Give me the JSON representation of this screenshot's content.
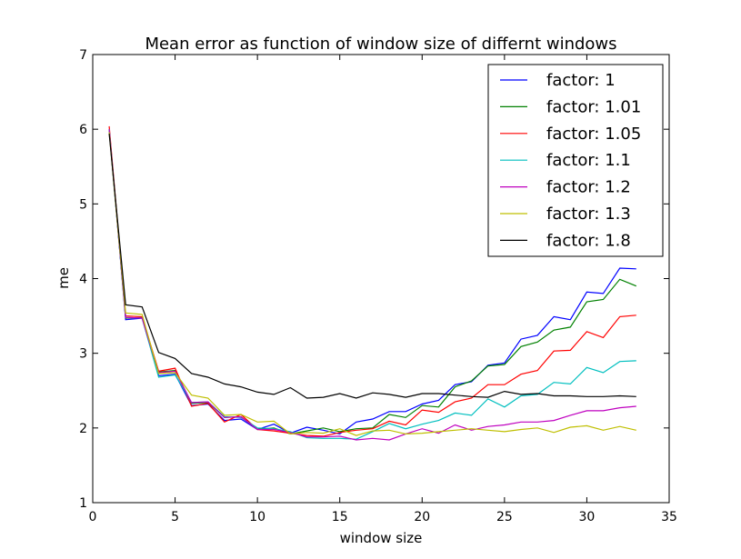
{
  "chart_data": {
    "type": "line",
    "title": "Mean error as function of window size of differnt windows",
    "xlabel": "window size",
    "ylabel": "me",
    "xlim": [
      0,
      35
    ],
    "ylim": [
      1,
      7
    ],
    "xticks": [
      "0",
      "5",
      "10",
      "15",
      "20",
      "25",
      "30",
      "35"
    ],
    "yticks": [
      "1",
      "2",
      "3",
      "4",
      "5",
      "6",
      "7"
    ],
    "grid": false,
    "legend_position": "top-right",
    "x": [
      1,
      2,
      3,
      4,
      5,
      6,
      7,
      8,
      9,
      10,
      11,
      12,
      13,
      14,
      15,
      16,
      17,
      18,
      19,
      20,
      21,
      22,
      23,
      24,
      25,
      26,
      27,
      28,
      29,
      30,
      31,
      32,
      33
    ],
    "series": [
      {
        "name": "factor: 1",
        "color": "#0000ff",
        "values": [
          6.0,
          3.45,
          3.47,
          2.7,
          2.72,
          2.3,
          2.32,
          2.1,
          2.12,
          1.98,
          2.05,
          1.93,
          2.01,
          1.97,
          1.92,
          2.08,
          2.12,
          2.22,
          2.22,
          2.32,
          2.37,
          2.58,
          2.62,
          2.84,
          2.87,
          3.19,
          3.24,
          3.49,
          3.45,
          3.82,
          3.8,
          4.14,
          4.13
        ]
      },
      {
        "name": "factor: 1.01",
        "color": "#008000",
        "values": [
          6.0,
          3.47,
          3.48,
          2.75,
          2.77,
          2.33,
          2.34,
          2.14,
          2.15,
          1.98,
          2.0,
          1.92,
          1.96,
          2.0,
          1.95,
          1.99,
          2.0,
          2.18,
          2.14,
          2.3,
          2.28,
          2.55,
          2.63,
          2.83,
          2.85,
          3.09,
          3.15,
          3.31,
          3.35,
          3.69,
          3.72,
          3.99,
          3.9
        ]
      },
      {
        "name": "factor: 1.05",
        "color": "#ff0000",
        "values": [
          6.04,
          3.5,
          3.49,
          2.76,
          2.8,
          2.29,
          2.33,
          2.08,
          2.18,
          1.98,
          1.96,
          1.93,
          1.9,
          1.89,
          1.94,
          1.97,
          1.99,
          2.09,
          2.04,
          2.24,
          2.21,
          2.35,
          2.4,
          2.58,
          2.58,
          2.72,
          2.77,
          3.03,
          3.04,
          3.29,
          3.21,
          3.49,
          3.51
        ]
      },
      {
        "name": "factor: 1.1",
        "color": "#00bfbf",
        "values": [
          6.0,
          3.48,
          3.47,
          2.68,
          2.71,
          2.34,
          2.35,
          2.15,
          2.14,
          2.0,
          1.99,
          1.95,
          1.87,
          1.86,
          1.86,
          1.85,
          1.95,
          2.06,
          1.99,
          2.05,
          2.1,
          2.2,
          2.17,
          2.39,
          2.28,
          2.43,
          2.45,
          2.61,
          2.59,
          2.81,
          2.74,
          2.89,
          2.9
        ]
      },
      {
        "name": "factor: 1.2",
        "color": "#bf00bf",
        "values": [
          6.0,
          3.48,
          3.47,
          2.74,
          2.76,
          2.34,
          2.35,
          2.14,
          2.15,
          1.98,
          1.98,
          1.94,
          1.88,
          1.88,
          1.89,
          1.84,
          1.86,
          1.84,
          1.92,
          1.99,
          1.93,
          2.04,
          1.97,
          2.02,
          2.04,
          2.08,
          2.08,
          2.1,
          2.17,
          2.23,
          2.23,
          2.27,
          2.29
        ]
      },
      {
        "name": "factor: 1.3",
        "color": "#bfbf00",
        "values": [
          5.96,
          3.54,
          3.52,
          2.73,
          2.74,
          2.44,
          2.4,
          2.17,
          2.18,
          2.08,
          2.09,
          1.92,
          1.94,
          1.93,
          1.99,
          1.9,
          1.96,
          1.97,
          1.92,
          1.93,
          1.95,
          1.97,
          1.99,
          1.97,
          1.95,
          1.98,
          2.0,
          1.94,
          2.01,
          2.03,
          1.97,
          2.02,
          1.97
        ]
      },
      {
        "name": "factor: 1.8",
        "color": "#000000",
        "values": [
          5.94,
          3.65,
          3.62,
          3.01,
          2.93,
          2.73,
          2.68,
          2.59,
          2.55,
          2.48,
          2.45,
          2.54,
          2.4,
          2.41,
          2.46,
          2.4,
          2.47,
          2.45,
          2.41,
          2.46,
          2.46,
          2.44,
          2.42,
          2.41,
          2.49,
          2.45,
          2.46,
          2.43,
          2.43,
          2.42,
          2.42,
          2.43,
          2.42
        ]
      }
    ]
  }
}
